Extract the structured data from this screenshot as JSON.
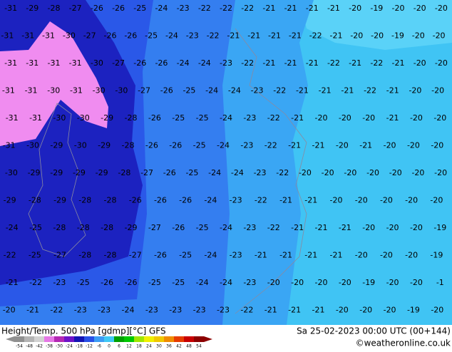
{
  "title": "Height/Temp. 500 hPa [gdmp][°C] GFS",
  "datetime": "Sa 25-02-2023 00:00 UTC (00+144)",
  "credit": "©weatheronline.co.uk",
  "colorbar": {
    "labels": [
      -54,
      -48,
      -42,
      -38,
      -30,
      -24,
      -18,
      -12,
      -6,
      0,
      6,
      12,
      18,
      24,
      30,
      36,
      42,
      48,
      54
    ],
    "colors": [
      "#909090",
      "#b4b4b4",
      "#d2d2d2",
      "#e678e6",
      "#b428b4",
      "#6e14c8",
      "#1414b4",
      "#2850e6",
      "#3c9cf4",
      "#40c8f4",
      "#00a000",
      "#00c800",
      "#a0e600",
      "#f0f000",
      "#f0c800",
      "#f08c00",
      "#e63c00",
      "#c80000",
      "#8c0000"
    ]
  },
  "labels": [
    [
      -31,
      -29,
      -28,
      -27,
      -26,
      -26,
      -25,
      -24,
      -23,
      -22,
      -22,
      -22,
      -21,
      -21,
      -21,
      -21,
      -20,
      -19,
      -20,
      -20,
      -20
    ],
    [
      -31,
      -31,
      -31,
      -30,
      -27,
      -26,
      -26,
      -25,
      -24,
      -23,
      -22,
      -21,
      -21,
      -21,
      -21,
      -22,
      -21,
      -20,
      -20,
      -19,
      -20,
      -20
    ],
    [
      -31,
      -31,
      -31,
      -31,
      -30,
      -27,
      -26,
      -26,
      -24,
      -24,
      -23,
      -22,
      -21,
      -21,
      -21,
      -22,
      -21,
      -22,
      -21,
      -20,
      -20
    ],
    [
      -31,
      -31,
      -30,
      -31,
      -30,
      -30,
      -27,
      -26,
      -25,
      -24,
      -24,
      -23,
      -22,
      -21,
      -21,
      -21,
      -22,
      -21,
      -20,
      -20
    ],
    [
      -31,
      -31,
      -30,
      -30,
      -29,
      -28,
      -26,
      -25,
      -25,
      -24,
      -23,
      -22,
      -21,
      -20,
      -20,
      -20,
      -21,
      -20,
      -20
    ],
    [
      -31,
      -30,
      -29,
      -30,
      -29,
      -28,
      -26,
      -26,
      -25,
      -24,
      -23,
      -22,
      -21,
      -21,
      -20,
      -21,
      -20,
      -20,
      -20
    ],
    [
      -30,
      -29,
      -29,
      -29,
      -29,
      -28,
      -27,
      -26,
      -25,
      -24,
      -24,
      -23,
      -22,
      -20,
      -20,
      -20,
      -20,
      -20,
      -20,
      -20
    ],
    [
      -29,
      -28,
      -29,
      -28,
      -28,
      -26,
      -26,
      -26,
      -24,
      -23,
      -22,
      -21,
      -21,
      -20,
      -20,
      -20,
      -20,
      -20
    ],
    [
      -24,
      -25,
      -28,
      -28,
      -28,
      -29,
      -27,
      -26,
      -25,
      -24,
      -23,
      -22,
      -21,
      -21,
      -21,
      -20,
      -20,
      -20,
      -19
    ],
    [
      -22,
      -25,
      -27,
      -28,
      -28,
      -27,
      -26,
      -25,
      -24,
      -23,
      -21,
      -21,
      -21,
      -21,
      -20,
      -20,
      -20,
      -19
    ],
    [
      -21,
      -22,
      -23,
      -25,
      -26,
      -26,
      -25,
      -25,
      -24,
      -24,
      -23,
      -20,
      -20,
      -20,
      -20,
      -19,
      -20,
      -20,
      -1
    ],
    [
      -20,
      -21,
      -22,
      -23,
      -23,
      -24,
      -23,
      -23,
      -23,
      -23,
      -22,
      -21,
      -21,
      -21,
      -20,
      -20,
      -20,
      -19,
      -20
    ]
  ]
}
